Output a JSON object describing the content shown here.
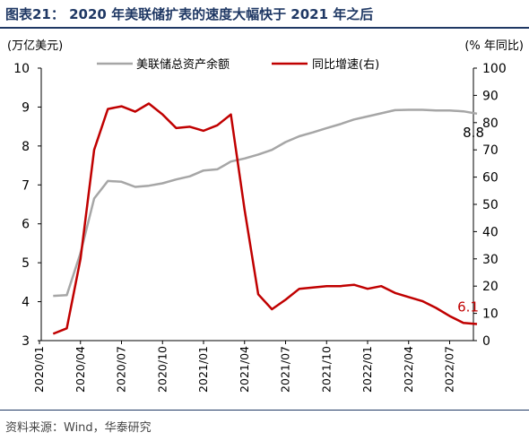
{
  "header": {
    "title": "图表21：  2020 年美联储扩表的速度大幅快于 2021 年之后"
  },
  "footer": {
    "source": "资料来源：Wind，华泰研究"
  },
  "colors": {
    "title": "#1f3864",
    "grey_series": "#a6a6a6",
    "red_series": "#c00000"
  },
  "chart_data": {
    "type": "line",
    "left_axis": {
      "unit_label": "(万亿美元)",
      "range": [
        3,
        10
      ],
      "ticks": [
        "3",
        "4",
        "5",
        "6",
        "7",
        "8",
        "9",
        "10"
      ]
    },
    "right_axis": {
      "unit_label": "(% 年同比)",
      "range": [
        0,
        100
      ],
      "ticks": [
        "0",
        "10",
        "20",
        "30",
        "40",
        "50",
        "60",
        "70",
        "80",
        "90",
        "100"
      ]
    },
    "x_tick_labels": [
      "2020/01",
      "2020/04",
      "2020/07",
      "2020/10",
      "2021/01",
      "2021/04",
      "2021/07",
      "2021/10",
      "2022/01",
      "2022/04",
      "2022/07"
    ],
    "x_range": [
      0,
      32
    ],
    "legend_position": "top",
    "grid": false,
    "series": [
      {
        "name": "美联储总资产余额",
        "axis": "left",
        "x": [
          1,
          2,
          3,
          4,
          5,
          6,
          7,
          8,
          9,
          10,
          11,
          12,
          13,
          14,
          15,
          16,
          17,
          18,
          19,
          20,
          21,
          22,
          23,
          24,
          25,
          26,
          27,
          28,
          29,
          30,
          31,
          32
        ],
        "values": [
          4.15,
          4.17,
          5.25,
          6.65,
          7.1,
          7.08,
          6.95,
          6.98,
          7.04,
          7.14,
          7.22,
          7.37,
          7.4,
          7.6,
          7.68,
          7.78,
          7.9,
          8.1,
          8.25,
          8.35,
          8.46,
          8.56,
          8.68,
          8.76,
          8.84,
          8.92,
          8.93,
          8.93,
          8.91,
          8.91,
          8.89,
          8.83
        ],
        "end_label": "8.8"
      },
      {
        "name": "同比增速(右)",
        "axis": "right",
        "x": [
          1,
          2,
          3,
          4,
          5,
          6,
          7,
          8,
          9,
          10,
          11,
          12,
          13,
          14,
          15,
          16,
          17,
          18,
          19,
          20,
          21,
          22,
          23,
          24,
          25,
          26,
          27,
          28,
          29,
          30,
          31,
          32
        ],
        "values": [
          2.5,
          4.5,
          30,
          70,
          85,
          86,
          84,
          87,
          83,
          78,
          78.5,
          77,
          79,
          83,
          48,
          17,
          11.5,
          15,
          19,
          19.5,
          20,
          20,
          20.5,
          19,
          20,
          17.5,
          16,
          14.5,
          12,
          9,
          6.5,
          6.1
        ],
        "end_label": "6.1"
      }
    ]
  }
}
